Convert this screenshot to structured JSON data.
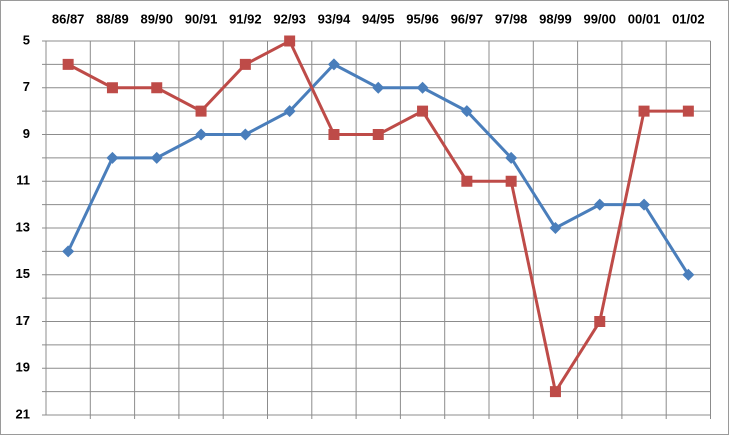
{
  "chart_data": {
    "type": "line",
    "categories": [
      "86/87",
      "88/89",
      "89/90",
      "90/91",
      "91/92",
      "92/93",
      "93/94",
      "94/95",
      "95/96",
      "96/97",
      "97/98",
      "98/99",
      "99/00",
      "00/01",
      "01/02"
    ],
    "series": [
      {
        "color": "#4a7ebb",
        "marker": "diamond",
        "values": [
          14,
          10,
          10,
          9,
          9,
          8,
          6,
          7,
          7,
          8,
          10,
          13,
          12,
          12,
          15
        ]
      },
      {
        "color": "#be4b48",
        "marker": "square",
        "values": [
          6,
          7,
          7,
          8,
          6,
          5,
          9,
          9,
          8,
          11,
          11,
          20,
          17,
          8,
          8
        ]
      }
    ],
    "ylim": [
      5,
      21
    ],
    "y_inverted": true,
    "yticks": [
      5,
      7,
      9,
      11,
      13,
      15,
      17,
      19,
      21
    ],
    "minor_yticks": [
      6,
      8,
      10,
      12,
      14,
      16,
      18,
      20
    ],
    "grid": true
  }
}
